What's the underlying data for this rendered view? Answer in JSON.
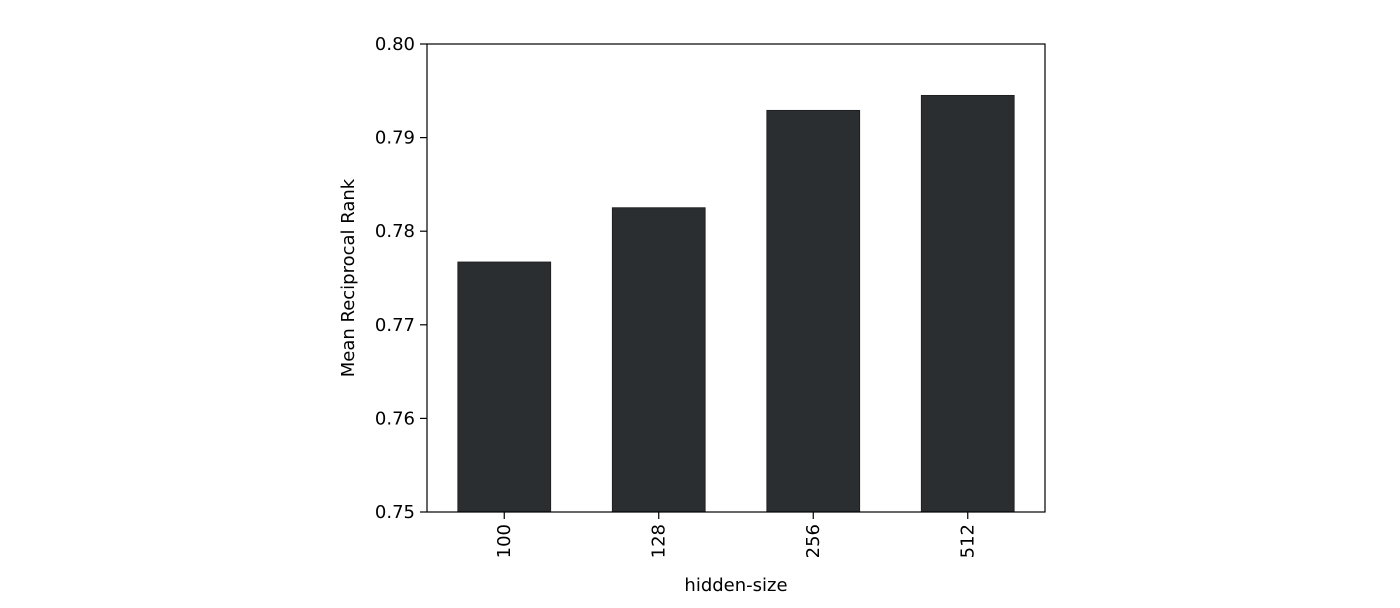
{
  "chart_data": {
    "type": "bar",
    "title": "",
    "xlabel": "hidden-size",
    "ylabel": "Mean Reciprocal Rank",
    "categories": [
      "100",
      "128",
      "256",
      "512"
    ],
    "values": [
      0.7767,
      0.7825,
      0.7929,
      0.7945
    ],
    "ylim": [
      0.75,
      0.8
    ],
    "yticks": [
      "0.75",
      "0.76",
      "0.77",
      "0.78",
      "0.79",
      "0.80"
    ],
    "grid": false,
    "bar_color": "#2b2e30",
    "xtick_rotation": "vertical"
  }
}
